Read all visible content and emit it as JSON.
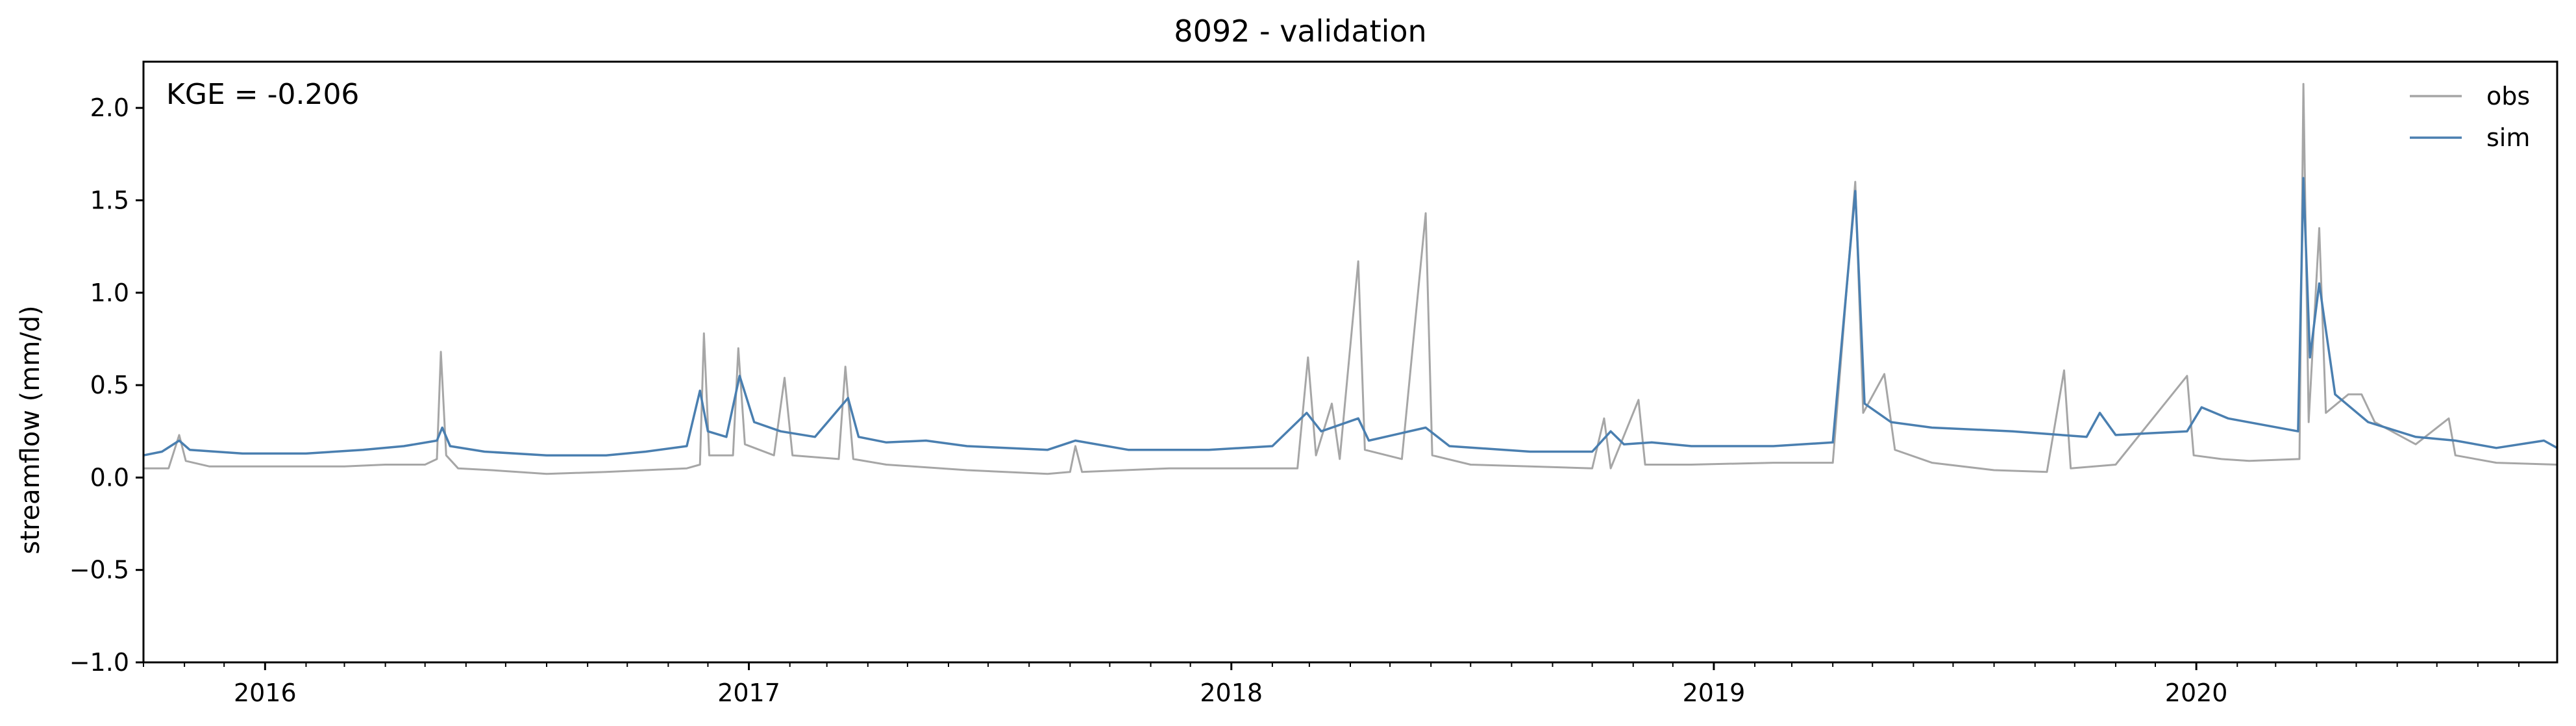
{
  "chart_data": {
    "type": "line",
    "title": "8092 - validation",
    "xlabel": "",
    "ylabel": "streamflow (mm/d)",
    "annotation": "KGE = -0.206",
    "xlim": [
      "2015-10-01",
      "2020-09-30"
    ],
    "ylim": [
      -1.0,
      2.25
    ],
    "yticks": [
      -1.0,
      -0.5,
      0.0,
      0.5,
      1.0,
      1.5,
      2.0
    ],
    "ytick_labels": [
      "−1.0",
      "−0.5",
      "0.0",
      "0.5",
      "1.0",
      "1.5",
      "2.0"
    ],
    "xticks": [
      "2016-01-01",
      "2017-01-01",
      "2018-01-01",
      "2019-01-01",
      "2020-01-01"
    ],
    "xtick_labels": [
      "2016",
      "2017",
      "2018",
      "2019",
      "2020"
    ],
    "grid": false,
    "legend": "upper-right",
    "colors": {
      "obs": "#a6a6a6",
      "sim": "#4a7fb0"
    },
    "series": [
      {
        "name": "obs",
        "points": [
          [
            "2015-10-01",
            0.05
          ],
          [
            "2015-10-20",
            0.05
          ],
          [
            "2015-10-28",
            0.23
          ],
          [
            "2015-11-02",
            0.09
          ],
          [
            "2015-11-20",
            0.06
          ],
          [
            "2016-01-15",
            0.06
          ],
          [
            "2016-03-01",
            0.06
          ],
          [
            "2016-04-01",
            0.07
          ],
          [
            "2016-05-01",
            0.07
          ],
          [
            "2016-05-10",
            0.1
          ],
          [
            "2016-05-13",
            0.68
          ],
          [
            "2016-05-17",
            0.12
          ],
          [
            "2016-05-26",
            0.05
          ],
          [
            "2016-06-20",
            0.04
          ],
          [
            "2016-08-01",
            0.02
          ],
          [
            "2016-09-15",
            0.03
          ],
          [
            "2016-11-15",
            0.05
          ],
          [
            "2016-11-25",
            0.07
          ],
          [
            "2016-11-28",
            0.78
          ],
          [
            "2016-12-02",
            0.12
          ],
          [
            "2016-12-20",
            0.12
          ],
          [
            "2016-12-24",
            0.7
          ],
          [
            "2016-12-29",
            0.18
          ],
          [
            "2017-01-20",
            0.12
          ],
          [
            "2017-01-28",
            0.54
          ],
          [
            "2017-02-03",
            0.12
          ],
          [
            "2017-03-10",
            0.1
          ],
          [
            "2017-03-15",
            0.6
          ],
          [
            "2017-03-21",
            0.1
          ],
          [
            "2017-04-15",
            0.07
          ],
          [
            "2017-06-15",
            0.04
          ],
          [
            "2017-08-15",
            0.02
          ],
          [
            "2017-09-01",
            0.03
          ],
          [
            "2017-09-05",
            0.17
          ],
          [
            "2017-09-10",
            0.03
          ],
          [
            "2017-11-15",
            0.05
          ],
          [
            "2018-01-15",
            0.05
          ],
          [
            "2018-02-20",
            0.05
          ],
          [
            "2018-02-28",
            0.65
          ],
          [
            "2018-03-06",
            0.12
          ],
          [
            "2018-03-18",
            0.4
          ],
          [
            "2018-03-24",
            0.1
          ],
          [
            "2018-04-07",
            1.17
          ],
          [
            "2018-04-12",
            0.15
          ],
          [
            "2018-05-10",
            0.1
          ],
          [
            "2018-05-28",
            1.43
          ],
          [
            "2018-06-02",
            0.12
          ],
          [
            "2018-07-01",
            0.07
          ],
          [
            "2018-08-15",
            0.06
          ],
          [
            "2018-10-01",
            0.05
          ],
          [
            "2018-10-10",
            0.32
          ],
          [
            "2018-10-15",
            0.05
          ],
          [
            "2018-11-05",
            0.42
          ],
          [
            "2018-11-10",
            0.07
          ],
          [
            "2018-12-15",
            0.07
          ],
          [
            "2019-02-15",
            0.08
          ],
          [
            "2019-04-01",
            0.08
          ],
          [
            "2019-04-18",
            1.6
          ],
          [
            "2019-04-24",
            0.35
          ],
          [
            "2019-05-10",
            0.56
          ],
          [
            "2019-05-18",
            0.15
          ],
          [
            "2019-06-15",
            0.08
          ],
          [
            "2019-08-01",
            0.04
          ],
          [
            "2019-09-10",
            0.03
          ],
          [
            "2019-09-23",
            0.58
          ],
          [
            "2019-09-28",
            0.05
          ],
          [
            "2019-11-01",
            0.07
          ],
          [
            "2019-12-25",
            0.55
          ],
          [
            "2019-12-30",
            0.12
          ],
          [
            "2020-01-20",
            0.1
          ],
          [
            "2020-02-10",
            0.09
          ],
          [
            "2020-03-19",
            0.1
          ],
          [
            "2020-03-22",
            2.13
          ],
          [
            "2020-03-26",
            0.3
          ],
          [
            "2020-04-03",
            1.35
          ],
          [
            "2020-04-08",
            0.35
          ],
          [
            "2020-04-25",
            0.45
          ],
          [
            "2020-05-05",
            0.45
          ],
          [
            "2020-05-15",
            0.3
          ],
          [
            "2020-06-15",
            0.18
          ],
          [
            "2020-07-10",
            0.32
          ],
          [
            "2020-07-15",
            0.12
          ],
          [
            "2020-08-15",
            0.08
          ],
          [
            "2020-09-30",
            0.07
          ]
        ]
      },
      {
        "name": "sim",
        "points": [
          [
            "2015-10-01",
            0.12
          ],
          [
            "2015-10-15",
            0.14
          ],
          [
            "2015-10-28",
            0.2
          ],
          [
            "2015-11-05",
            0.15
          ],
          [
            "2015-12-15",
            0.13
          ],
          [
            "2016-02-01",
            0.13
          ],
          [
            "2016-03-15",
            0.15
          ],
          [
            "2016-04-15",
            0.17
          ],
          [
            "2016-05-10",
            0.2
          ],
          [
            "2016-05-14",
            0.27
          ],
          [
            "2016-05-20",
            0.17
          ],
          [
            "2016-06-15",
            0.14
          ],
          [
            "2016-08-01",
            0.12
          ],
          [
            "2016-09-15",
            0.12
          ],
          [
            "2016-10-15",
            0.14
          ],
          [
            "2016-11-15",
            0.17
          ],
          [
            "2016-11-25",
            0.47
          ],
          [
            "2016-12-01",
            0.25
          ],
          [
            "2016-12-15",
            0.22
          ],
          [
            "2016-12-25",
            0.55
          ],
          [
            "2017-01-05",
            0.3
          ],
          [
            "2017-01-25",
            0.25
          ],
          [
            "2017-02-20",
            0.22
          ],
          [
            "2017-03-17",
            0.43
          ],
          [
            "2017-03-25",
            0.22
          ],
          [
            "2017-04-15",
            0.19
          ],
          [
            "2017-05-15",
            0.2
          ],
          [
            "2017-06-15",
            0.17
          ],
          [
            "2017-08-15",
            0.15
          ],
          [
            "2017-09-05",
            0.2
          ],
          [
            "2017-10-15",
            0.15
          ],
          [
            "2017-12-15",
            0.15
          ],
          [
            "2018-02-01",
            0.17
          ],
          [
            "2018-02-27",
            0.35
          ],
          [
            "2018-03-10",
            0.25
          ],
          [
            "2018-04-07",
            0.32
          ],
          [
            "2018-04-15",
            0.2
          ],
          [
            "2018-05-28",
            0.27
          ],
          [
            "2018-06-15",
            0.17
          ],
          [
            "2018-08-15",
            0.14
          ],
          [
            "2018-10-01",
            0.14
          ],
          [
            "2018-10-15",
            0.25
          ],
          [
            "2018-10-25",
            0.18
          ],
          [
            "2018-11-15",
            0.19
          ],
          [
            "2018-12-15",
            0.17
          ],
          [
            "2019-02-15",
            0.17
          ],
          [
            "2019-04-01",
            0.19
          ],
          [
            "2019-04-18",
            1.55
          ],
          [
            "2019-04-25",
            0.4
          ],
          [
            "2019-05-15",
            0.3
          ],
          [
            "2019-06-15",
            0.27
          ],
          [
            "2019-08-15",
            0.25
          ],
          [
            "2019-10-10",
            0.22
          ],
          [
            "2019-10-20",
            0.35
          ],
          [
            "2019-11-01",
            0.23
          ],
          [
            "2019-12-25",
            0.25
          ],
          [
            "2020-01-05",
            0.38
          ],
          [
            "2020-01-25",
            0.32
          ],
          [
            "2020-03-18",
            0.25
          ],
          [
            "2020-03-22",
            1.62
          ],
          [
            "2020-03-27",
            0.65
          ],
          [
            "2020-04-03",
            1.05
          ],
          [
            "2020-04-15",
            0.45
          ],
          [
            "2020-05-10",
            0.3
          ],
          [
            "2020-06-15",
            0.22
          ],
          [
            "2020-07-15",
            0.2
          ],
          [
            "2020-08-15",
            0.16
          ],
          [
            "2020-09-20",
            0.2
          ],
          [
            "2020-09-30",
            0.16
          ]
        ]
      }
    ]
  }
}
